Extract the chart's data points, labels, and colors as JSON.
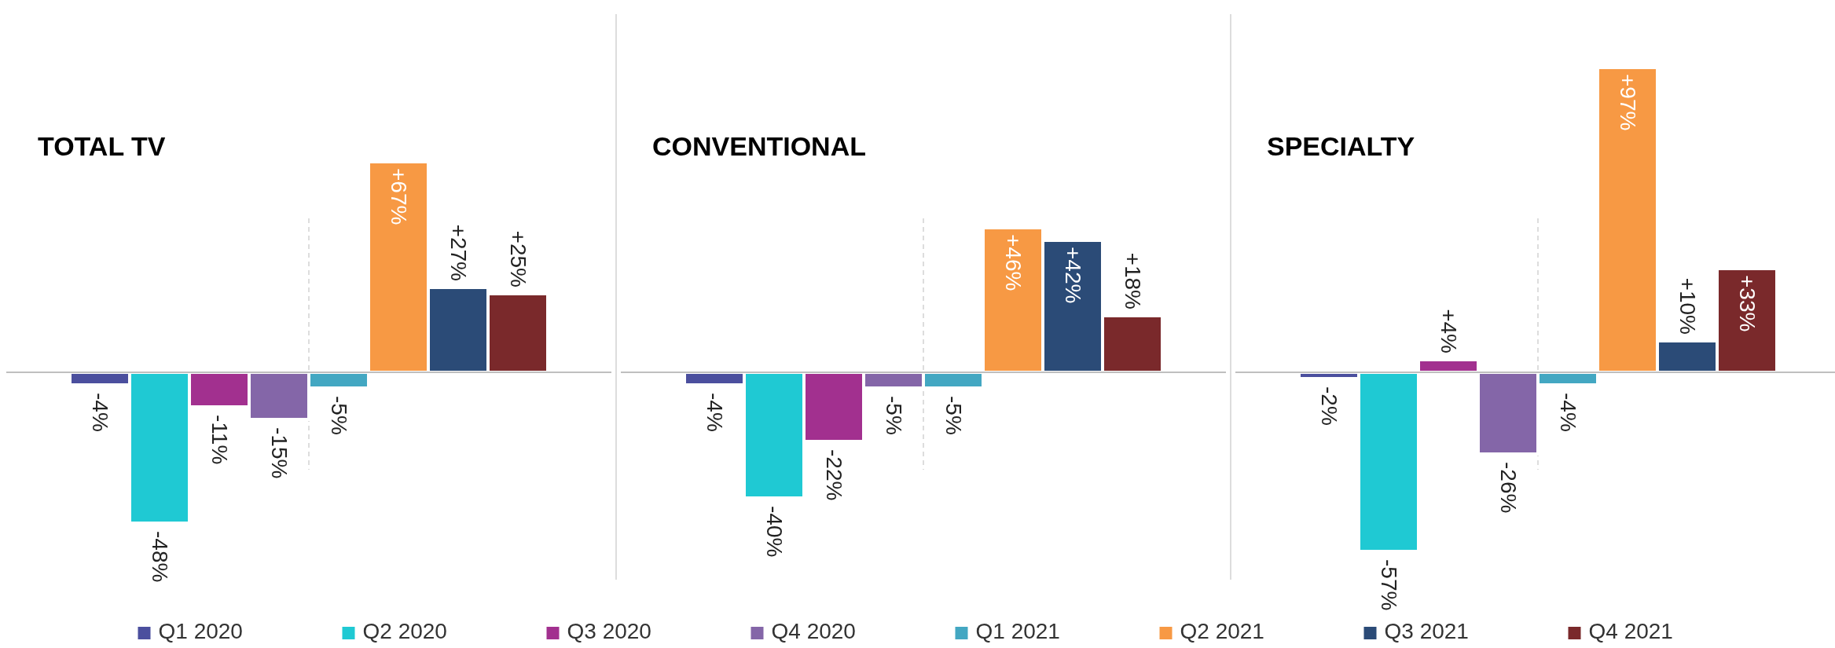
{
  "chart_data": [
    {
      "type": "bar",
      "title": "TOTAL TV",
      "categories": [
        null
      ],
      "legend": "bottom",
      "series": [
        {
          "name": "Q1 2020",
          "color": "#4b4f9e",
          "values": [
            -4
          ],
          "value_labels": [
            "-4%"
          ]
        },
        {
          "name": "Q2 2020",
          "color": "#1fc9d3",
          "values": [
            -48
          ],
          "value_labels": [
            "-48%"
          ]
        },
        {
          "name": "Q3 2020",
          "color": "#a2308f",
          "values": [
            -11
          ],
          "value_labels": [
            "-11%"
          ]
        },
        {
          "name": "Q4 2020",
          "color": "#8466a8",
          "values": [
            -15
          ],
          "value_labels": [
            "-15%"
          ]
        },
        {
          "name": "Q1 2021",
          "color": "#43a7c2",
          "values": [
            -5
          ],
          "value_labels": [
            "-5%"
          ]
        },
        {
          "name": "Q2 2021",
          "color": "#f79944",
          "values": [
            67
          ],
          "value_labels": [
            "+67%"
          ]
        },
        {
          "name": "Q3 2021",
          "color": "#2b4b77",
          "values": [
            27
          ],
          "value_labels": [
            "+27%"
          ]
        },
        {
          "name": "Q4 2021",
          "color": "#7a292b",
          "values": [
            25
          ],
          "value_labels": [
            "+25%"
          ]
        }
      ]
    },
    {
      "type": "bar",
      "title": "CONVENTIONAL",
      "categories": [
        null
      ],
      "series": [
        {
          "color": "#4b4f9e",
          "values": [
            -4
          ],
          "value_labels": [
            "-4%"
          ]
        },
        {
          "color": "#1fc9d3",
          "values": [
            -40
          ],
          "value_labels": [
            "-40%"
          ]
        },
        {
          "color": "#a2308f",
          "values": [
            -22
          ],
          "value_labels": [
            "-22%"
          ]
        },
        {
          "color": "#8466a8",
          "values": [
            -5
          ],
          "value_labels": [
            "-5%"
          ]
        },
        {
          "color": "#43a7c2",
          "values": [
            -5
          ],
          "value_labels": [
            "-5%"
          ]
        },
        {
          "color": "#f79944",
          "values": [
            46
          ],
          "value_labels": [
            "+46%"
          ]
        },
        {
          "color": "#2b4b77",
          "values": [
            42
          ],
          "value_labels": [
            "+42%"
          ]
        },
        {
          "color": "#7a292b",
          "values": [
            18
          ],
          "value_labels": [
            "+18%"
          ]
        }
      ]
    },
    {
      "type": "bar",
      "title": "SPECIALTY",
      "categories": [
        null
      ],
      "series": [
        {
          "color": "#4b4f9e",
          "values": [
            -2
          ],
          "value_labels": [
            "-2%"
          ]
        },
        {
          "color": "#1fc9d3",
          "values": [
            -57
          ],
          "value_labels": [
            "-57%"
          ]
        },
        {
          "color": "#a2308f",
          "values": [
            4
          ],
          "value_labels": [
            "+4%"
          ]
        },
        {
          "color": "#8466a8",
          "values": [
            -26
          ],
          "value_labels": [
            "-26%"
          ]
        },
        {
          "color": "#43a7c2",
          "values": [
            -4
          ],
          "value_labels": [
            "-4%"
          ]
        },
        {
          "color": "#f79944",
          "values": [
            97
          ],
          "value_labels": [
            "+97%"
          ]
        },
        {
          "color": "#2b4b77",
          "values": [
            10
          ],
          "value_labels": [
            "+10%"
          ]
        },
        {
          "color": "#7a292b",
          "values": [
            33
          ],
          "value_labels": [
            "+33%"
          ]
        }
      ]
    }
  ]
}
